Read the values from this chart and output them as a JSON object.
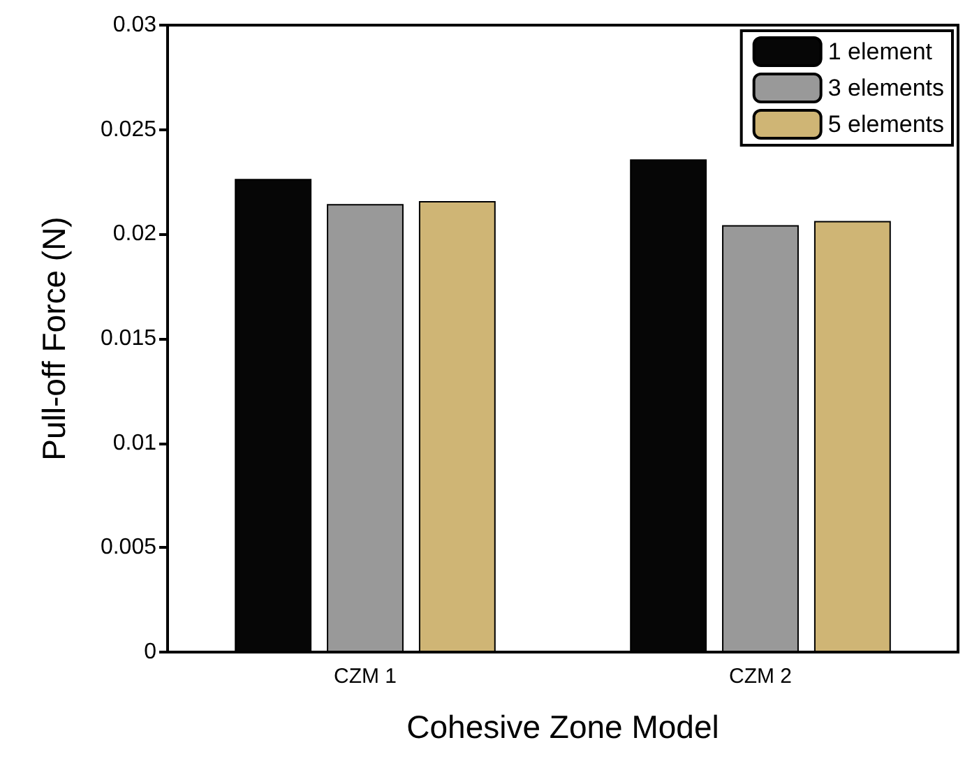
{
  "chart_data": {
    "type": "bar",
    "xlabel": "Cohesive Zone Model",
    "ylabel": "Pull-off Force (N)",
    "categories": [
      "CZM 1",
      "CZM 2"
    ],
    "series": [
      {
        "name": "1 element",
        "color": "#060606",
        "values": [
          0.02264,
          0.02358
        ]
      },
      {
        "name": "3 elements",
        "color": "#999999",
        "values": [
          0.02144,
          0.02043
        ]
      },
      {
        "name": "5 elements",
        "color": "#cfb575",
        "values": [
          0.02158,
          0.02063
        ]
      }
    ],
    "ylim": [
      0,
      0.03
    ],
    "yticks": [
      0,
      0.005,
      0.01,
      0.015,
      0.02,
      0.025,
      0.03
    ],
    "grid": false,
    "legend": "top right"
  }
}
